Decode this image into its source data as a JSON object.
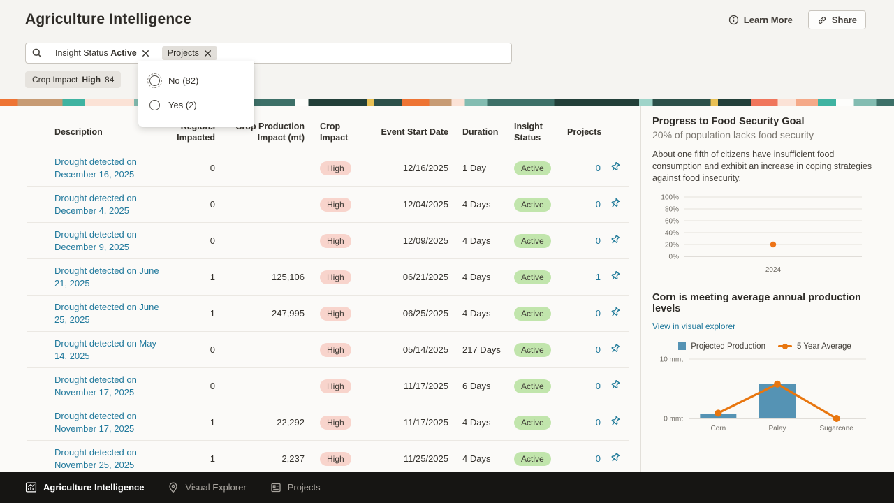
{
  "header": {
    "title": "Agriculture Intelligence",
    "learn_more": "Learn More",
    "share": "Share"
  },
  "filters": {
    "insight_chip": {
      "label": "Insight Status",
      "value": "Active"
    },
    "projects_chip": {
      "label": "Projects"
    },
    "crop_chip": {
      "label": "Crop Impact",
      "value": "High",
      "count": "84"
    },
    "projects_dropdown": {
      "options": [
        {
          "label": "No (82)",
          "focused": true
        },
        {
          "label": "Yes (2)",
          "focused": false
        }
      ]
    }
  },
  "table": {
    "columns": {
      "description": "Description",
      "regions": "Regions Impacted",
      "production": "Crop Production Impact (mt)",
      "impact": "Crop Impact",
      "date": "Event Start Date",
      "duration": "Duration",
      "status": "Insight Status",
      "projects": "Projects"
    },
    "rows": [
      {
        "unread": true,
        "description": "Drought detected on December 16, 2025",
        "regions": "0",
        "production": "",
        "impact": "High",
        "date": "12/16/2025",
        "duration": "1 Day",
        "status": "Active",
        "projects": "0",
        "focused": false
      },
      {
        "unread": false,
        "description": "Drought detected on December 4, 2025",
        "regions": "0",
        "production": "",
        "impact": "High",
        "date": "12/04/2025",
        "duration": "4 Days",
        "status": "Active",
        "projects": "0",
        "focused": false
      },
      {
        "unread": false,
        "description": "Drought detected on December 9, 2025",
        "regions": "0",
        "production": "",
        "impact": "High",
        "date": "12/09/2025",
        "duration": "4 Days",
        "status": "Active",
        "projects": "0",
        "focused": false
      },
      {
        "unread": false,
        "description": "Drought detected on June 21, 2025",
        "regions": "1",
        "production": "125,106",
        "impact": "High",
        "date": "06/21/2025",
        "duration": "4 Days",
        "status": "Active",
        "projects": "1",
        "focused": false
      },
      {
        "unread": false,
        "description": "Drought detected on June 25, 2025",
        "regions": "1",
        "production": "247,995",
        "impact": "High",
        "date": "06/25/2025",
        "duration": "4 Days",
        "status": "Active",
        "projects": "0",
        "focused": false
      },
      {
        "unread": false,
        "description": "Drought detected on May 14, 2025",
        "regions": "0",
        "production": "",
        "impact": "High",
        "date": "05/14/2025",
        "duration": "217 Days",
        "status": "Active",
        "projects": "0",
        "focused": false
      },
      {
        "unread": false,
        "description": "Drought detected on November 17, 2025",
        "regions": "0",
        "production": "",
        "impact": "High",
        "date": "11/17/2025",
        "duration": "6 Days",
        "status": "Active",
        "projects": "0",
        "focused": false
      },
      {
        "unread": false,
        "description": "Drought detected on November 17, 2025",
        "regions": "1",
        "production": "22,292",
        "impact": "High",
        "date": "11/17/2025",
        "duration": "4 Days",
        "status": "Active",
        "projects": "0",
        "focused": false
      },
      {
        "unread": false,
        "description": "Drought detected on November 25, 2025",
        "regions": "1",
        "production": "2,237",
        "impact": "High",
        "date": "11/25/2025",
        "duration": "4 Days",
        "status": "Active",
        "projects": "0",
        "focused": true
      }
    ]
  },
  "sidebar": {
    "goal": {
      "title": "Progress to Food Security Goal",
      "subtitle": "20% of population lacks food security",
      "description": "About one fifth of citizens have insufficient food consumption and exhibit an increase in coping strategies against food insecurity."
    },
    "production": {
      "title": "Corn is meeting average annual production levels",
      "link": "View in visual explorer"
    }
  },
  "chart_data": [
    {
      "type": "scatter",
      "title": "Progress to Food Security Goal",
      "x": [
        "2024"
      ],
      "values": [
        20
      ],
      "yticks": [
        "100%",
        "80%",
        "60%",
        "40%",
        "20%",
        "0%"
      ],
      "ylim": [
        0,
        100
      ],
      "point_color": "#ed7417",
      "grid": true,
      "legend": "none"
    },
    {
      "type": "bar",
      "title": "Corn is meeting average annual production levels",
      "categories": [
        "Corn",
        "Palay",
        "Sugarcane"
      ],
      "series": [
        {
          "name": "Projected Production",
          "type": "bar",
          "values": [
            0.8,
            5.8,
            0
          ]
        },
        {
          "name": "5 Year Average",
          "type": "line",
          "values": [
            0.9,
            5.8,
            0
          ]
        }
      ],
      "ylim": [
        0,
        10
      ],
      "ytick_top": "10 mmt",
      "ytick_bottom": "0 mmt",
      "bar_color": "#5593b4",
      "line_color": "#e8760f",
      "legend_position": "top"
    }
  ],
  "bottom_nav": {
    "items": [
      {
        "label": "Agriculture Intelligence",
        "active": true
      },
      {
        "label": "Visual Explorer",
        "active": false
      },
      {
        "label": "Projects",
        "active": false
      }
    ]
  }
}
